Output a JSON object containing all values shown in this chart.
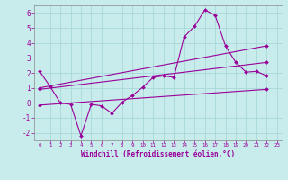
{
  "background_color": "#c8ecec",
  "grid_color": "#a8d8d8",
  "line_color": "#990099",
  "xlabel": "Windchill (Refroidissement éolien,°C)",
  "xlim": [
    -0.5,
    23.5
  ],
  "ylim": [
    -2.5,
    6.5
  ],
  "yticks": [
    -2,
    -1,
    0,
    1,
    2,
    3,
    4,
    5,
    6
  ],
  "xticks": [
    0,
    1,
    2,
    3,
    4,
    5,
    6,
    7,
    8,
    9,
    10,
    11,
    12,
    13,
    14,
    15,
    16,
    17,
    18,
    19,
    20,
    21,
    22,
    23
  ],
  "line1_x": [
    0,
    1,
    2,
    3,
    4,
    5,
    6,
    7,
    8,
    9,
    10,
    11,
    12,
    13,
    14,
    15,
    16,
    17,
    18,
    19,
    20,
    21,
    22
  ],
  "line1_y": [
    2.1,
    1.1,
    0.0,
    -0.1,
    -2.2,
    -0.1,
    -0.2,
    -0.7,
    0.05,
    0.5,
    1.05,
    1.7,
    1.8,
    1.7,
    4.4,
    5.1,
    6.2,
    5.85,
    3.8,
    2.7,
    2.05,
    2.1,
    1.8
  ],
  "line2_x": [
    0,
    22
  ],
  "line2_y": [
    1.0,
    3.8
  ],
  "line3_x": [
    0,
    22
  ],
  "line3_y": [
    0.9,
    2.7
  ],
  "line4_x": [
    0,
    22
  ],
  "line4_y": [
    -0.15,
    0.9
  ]
}
